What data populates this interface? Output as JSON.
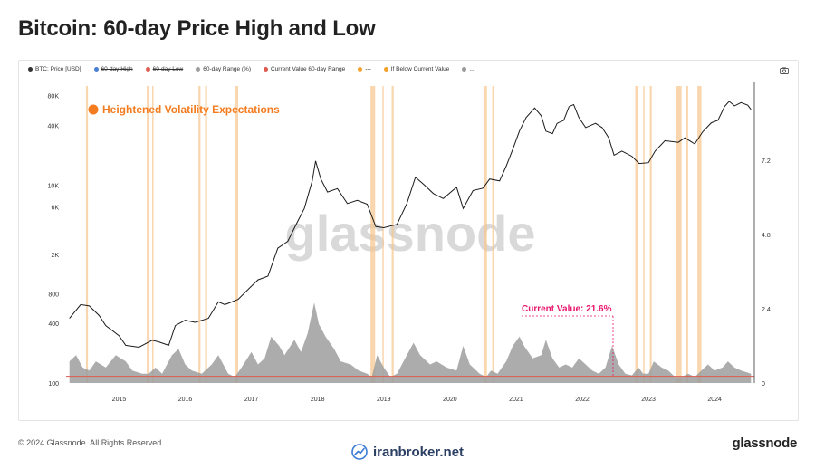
{
  "page": {
    "title": "Bitcoin: 60-day Price High and Low",
    "copyright": "© 2024 Glassnode. All Rights Reserved.",
    "brand": "glassnode",
    "site": "iranbroker.net"
  },
  "legend": [
    {
      "label": "BTC: Price [USD]",
      "color": "#333333",
      "struck": false
    },
    {
      "label": "60-day High",
      "color": "#4a7fd4",
      "struck": true
    },
    {
      "label": "60-day Low",
      "color": "#e06055",
      "struck": true
    },
    {
      "label": "60-day Range (%)",
      "color": "#9e9e9e",
      "struck": false
    },
    {
      "label": "Current Value 60-day Range",
      "color": "#e05a4f",
      "struck": false
    },
    {
      "label": "---",
      "color": "#f4a02a",
      "struck": false
    },
    {
      "label": "If Below Current Value",
      "color": "#f4a02a",
      "struck": false
    },
    {
      "label": "...",
      "color": "#999999",
      "struck": false
    }
  ],
  "colors": {
    "price": "#1a1a1a",
    "range_fill": "#9e9e9e",
    "highlight": "#f7c48c",
    "annotation": "#e8166d",
    "orange_dot": "#f47c20",
    "current_line": "#e05a4f"
  },
  "chart_data": {
    "type": "line",
    "annotation_title": "Heightened Volatility Expectations",
    "current_value_label": "Current Value: 21.6%",
    "watermark": "glassnode",
    "xlim": [
      2014.2,
      2024.6
    ],
    "y_left": {
      "scale": "log",
      "lim": [
        100,
        100000
      ],
      "tick_values": [
        100,
        400,
        800,
        2000,
        6000,
        10000,
        40000,
        80000
      ],
      "tick_labels": [
        "100",
        "400",
        "800",
        "2K",
        "6K",
        "10K",
        "40K",
        "80K"
      ]
    },
    "y_right": {
      "lim": [
        0,
        9.6
      ],
      "tick_values": [
        0,
        2.4,
        4.8,
        7.2
      ],
      "tick_labels": [
        "0",
        "2.4",
        "4.8",
        "7.2"
      ]
    },
    "x_ticks": [
      {
        "x": 2015.0,
        "label": "2015"
      },
      {
        "x": 2016.0,
        "label": "2016"
      },
      {
        "x": 2017.0,
        "label": "2017"
      },
      {
        "x": 2018.0,
        "label": "2018"
      },
      {
        "x": 2019.0,
        "label": "2019"
      },
      {
        "x": 2020.0,
        "label": "2020"
      },
      {
        "x": 2021.0,
        "label": "2021"
      },
      {
        "x": 2022.0,
        "label": "2022"
      },
      {
        "x": 2023.0,
        "label": "2023"
      },
      {
        "x": 2024.0,
        "label": "2024"
      }
    ],
    "series": [
      {
        "name": "BTC: Price [USD]",
        "points": [
          [
            2014.25,
            450
          ],
          [
            2014.42,
            620
          ],
          [
            2014.55,
            600
          ],
          [
            2014.7,
            480
          ],
          [
            2014.8,
            380
          ],
          [
            2015.0,
            300
          ],
          [
            2015.1,
            240
          ],
          [
            2015.3,
            230
          ],
          [
            2015.5,
            270
          ],
          [
            2015.6,
            260
          ],
          [
            2015.75,
            240
          ],
          [
            2015.85,
            380
          ],
          [
            2016.0,
            430
          ],
          [
            2016.15,
            410
          ],
          [
            2016.35,
            450
          ],
          [
            2016.5,
            660
          ],
          [
            2016.6,
            620
          ],
          [
            2016.8,
            700
          ],
          [
            2017.0,
            950
          ],
          [
            2017.1,
            1100
          ],
          [
            2017.25,
            1200
          ],
          [
            2017.4,
            2300
          ],
          [
            2017.55,
            2700
          ],
          [
            2017.7,
            4300
          ],
          [
            2017.8,
            5800
          ],
          [
            2017.92,
            11000
          ],
          [
            2017.97,
            17500
          ],
          [
            2018.05,
            11500
          ],
          [
            2018.15,
            8500
          ],
          [
            2018.3,
            9200
          ],
          [
            2018.45,
            6500
          ],
          [
            2018.6,
            7000
          ],
          [
            2018.75,
            6400
          ],
          [
            2018.88,
            3800
          ],
          [
            2019.0,
            3700
          ],
          [
            2019.2,
            4000
          ],
          [
            2019.35,
            6500
          ],
          [
            2019.48,
            12000
          ],
          [
            2019.6,
            10200
          ],
          [
            2019.75,
            8200
          ],
          [
            2019.9,
            7300
          ],
          [
            2020.1,
            9500
          ],
          [
            2020.2,
            5800
          ],
          [
            2020.35,
            8800
          ],
          [
            2020.5,
            9300
          ],
          [
            2020.6,
            11500
          ],
          [
            2020.75,
            11000
          ],
          [
            2020.85,
            15500
          ],
          [
            2020.95,
            23000
          ],
          [
            2021.05,
            35000
          ],
          [
            2021.15,
            48000
          ],
          [
            2021.28,
            60000
          ],
          [
            2021.38,
            50000
          ],
          [
            2021.45,
            35000
          ],
          [
            2021.55,
            33000
          ],
          [
            2021.62,
            42000
          ],
          [
            2021.72,
            45000
          ],
          [
            2021.8,
            62000
          ],
          [
            2021.87,
            65000
          ],
          [
            2021.95,
            48000
          ],
          [
            2022.05,
            38000
          ],
          [
            2022.2,
            42000
          ],
          [
            2022.3,
            38000
          ],
          [
            2022.4,
            30000
          ],
          [
            2022.48,
            20000
          ],
          [
            2022.6,
            22000
          ],
          [
            2022.75,
            19500
          ],
          [
            2022.86,
            16500
          ],
          [
            2023.0,
            16800
          ],
          [
            2023.1,
            22000
          ],
          [
            2023.25,
            28000
          ],
          [
            2023.45,
            27000
          ],
          [
            2023.55,
            30000
          ],
          [
            2023.7,
            26000
          ],
          [
            2023.82,
            34500
          ],
          [
            2023.95,
            42500
          ],
          [
            2024.05,
            45000
          ],
          [
            2024.15,
            62000
          ],
          [
            2024.22,
            70000
          ],
          [
            2024.3,
            63000
          ],
          [
            2024.4,
            68000
          ],
          [
            2024.5,
            64000
          ],
          [
            2024.55,
            58000
          ]
        ]
      },
      {
        "name": "60-day Range (%)",
        "points": [
          [
            2014.25,
            0.7
          ],
          [
            2014.35,
            0.9
          ],
          [
            2014.45,
            0.5
          ],
          [
            2014.55,
            0.4
          ],
          [
            2014.65,
            0.7
          ],
          [
            2014.8,
            0.5
          ],
          [
            2014.95,
            0.9
          ],
          [
            2015.1,
            0.7
          ],
          [
            2015.2,
            0.4
          ],
          [
            2015.35,
            0.3
          ],
          [
            2015.45,
            0.3
          ],
          [
            2015.55,
            0.5
          ],
          [
            2015.65,
            0.3
          ],
          [
            2015.8,
            0.9
          ],
          [
            2015.9,
            1.1
          ],
          [
            2016.0,
            0.6
          ],
          [
            2016.1,
            0.4
          ],
          [
            2016.25,
            0.3
          ],
          [
            2016.4,
            0.6
          ],
          [
            2016.5,
            0.9
          ],
          [
            2016.65,
            0.3
          ],
          [
            2016.75,
            0.2
          ],
          [
            2016.85,
            0.5
          ],
          [
            2017.0,
            1.0
          ],
          [
            2017.1,
            0.6
          ],
          [
            2017.2,
            0.8
          ],
          [
            2017.3,
            1.5
          ],
          [
            2017.42,
            1.2
          ],
          [
            2017.5,
            0.9
          ],
          [
            2017.65,
            1.4
          ],
          [
            2017.75,
            1.0
          ],
          [
            2017.85,
            1.6
          ],
          [
            2017.95,
            2.6
          ],
          [
            2018.02,
            1.9
          ],
          [
            2018.12,
            1.5
          ],
          [
            2018.25,
            1.1
          ],
          [
            2018.35,
            0.7
          ],
          [
            2018.5,
            0.6
          ],
          [
            2018.62,
            0.4
          ],
          [
            2018.75,
            0.3
          ],
          [
            2018.82,
            0.2
          ],
          [
            2018.9,
            0.9
          ],
          [
            2019.0,
            0.5
          ],
          [
            2019.1,
            0.2
          ],
          [
            2019.2,
            0.3
          ],
          [
            2019.35,
            0.9
          ],
          [
            2019.45,
            1.3
          ],
          [
            2019.55,
            0.9
          ],
          [
            2019.7,
            0.6
          ],
          [
            2019.8,
            0.7
          ],
          [
            2019.95,
            0.5
          ],
          [
            2020.1,
            0.4
          ],
          [
            2020.2,
            1.2
          ],
          [
            2020.3,
            0.6
          ],
          [
            2020.45,
            0.3
          ],
          [
            2020.55,
            0.2
          ],
          [
            2020.62,
            0.4
          ],
          [
            2020.72,
            0.3
          ],
          [
            2020.85,
            0.7
          ],
          [
            2020.95,
            1.2
          ],
          [
            2021.05,
            1.5
          ],
          [
            2021.12,
            1.2
          ],
          [
            2021.25,
            0.8
          ],
          [
            2021.38,
            0.9
          ],
          [
            2021.45,
            1.4
          ],
          [
            2021.55,
            0.8
          ],
          [
            2021.65,
            0.5
          ],
          [
            2021.75,
            0.6
          ],
          [
            2021.85,
            0.5
          ],
          [
            2021.95,
            0.8
          ],
          [
            2022.05,
            0.6
          ],
          [
            2022.15,
            0.4
          ],
          [
            2022.25,
            0.3
          ],
          [
            2022.35,
            0.5
          ],
          [
            2022.45,
            1.2
          ],
          [
            2022.55,
            0.6
          ],
          [
            2022.65,
            0.3
          ],
          [
            2022.75,
            0.25
          ],
          [
            2022.85,
            0.5
          ],
          [
            2022.92,
            0.3
          ],
          [
            2023.0,
            0.3
          ],
          [
            2023.08,
            0.7
          ],
          [
            2023.2,
            0.5
          ],
          [
            2023.3,
            0.4
          ],
          [
            2023.4,
            0.2
          ],
          [
            2023.5,
            0.2
          ],
          [
            2023.6,
            0.3
          ],
          [
            2023.7,
            0.2
          ],
          [
            2023.8,
            0.4
          ],
          [
            2023.9,
            0.6
          ],
          [
            2024.0,
            0.4
          ],
          [
            2024.12,
            0.5
          ],
          [
            2024.2,
            0.7
          ],
          [
            2024.3,
            0.5
          ],
          [
            2024.4,
            0.4
          ],
          [
            2024.55,
            0.3
          ]
        ]
      }
    ],
    "current_value": 0.216,
    "highlight_periods": [
      [
        2014.5,
        2014.53
      ],
      [
        2015.42,
        2015.46
      ],
      [
        2015.5,
        2015.52
      ],
      [
        2016.2,
        2016.23
      ],
      [
        2016.3,
        2016.33
      ],
      [
        2016.76,
        2016.8
      ],
      [
        2018.8,
        2018.87
      ],
      [
        2018.98,
        2019.0
      ],
      [
        2019.12,
        2019.15
      ],
      [
        2020.52,
        2020.56
      ],
      [
        2020.64,
        2020.67
      ],
      [
        2022.8,
        2022.84
      ],
      [
        2022.92,
        2022.94
      ],
      [
        2023.02,
        2023.05
      ],
      [
        2023.42,
        2023.5
      ],
      [
        2023.57,
        2023.6
      ],
      [
        2023.74,
        2023.8
      ]
    ]
  }
}
